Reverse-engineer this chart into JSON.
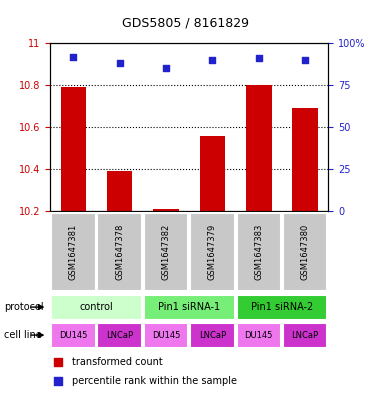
{
  "title": "GDS5805 / 8161829",
  "samples": [
    "GSM1647381",
    "GSM1647378",
    "GSM1647382",
    "GSM1647379",
    "GSM1647383",
    "GSM1647380"
  ],
  "red_values": [
    10.79,
    10.39,
    10.21,
    10.56,
    10.8,
    10.69
  ],
  "blue_values": [
    92,
    88,
    85,
    90,
    91,
    90
  ],
  "ylim_left": [
    10.2,
    11.0
  ],
  "ylim_right": [
    0,
    100
  ],
  "yticks_left": [
    10.2,
    10.4,
    10.6,
    10.8,
    11.0
  ],
  "yticks_right": [
    0,
    25,
    50,
    75,
    100
  ],
  "ytick_labels_left": [
    "10.2",
    "10.4",
    "10.6",
    "10.8",
    "11"
  ],
  "ytick_labels_right": [
    "0",
    "25",
    "50",
    "75",
    "100%"
  ],
  "protocols": [
    {
      "label": "control",
      "span": [
        0,
        2
      ],
      "color": "#ccffcc"
    },
    {
      "label": "Pin1 siRNA-1",
      "span": [
        2,
        4
      ],
      "color": "#77ee77"
    },
    {
      "label": "Pin1 siRNA-2",
      "span": [
        4,
        6
      ],
      "color": "#33cc33"
    }
  ],
  "cell_colors": [
    "#ee77ee",
    "#cc33cc",
    "#ee77ee",
    "#cc33cc",
    "#ee77ee",
    "#cc33cc"
  ],
  "cell_labels": [
    "DU145",
    "LNCaP",
    "DU145",
    "LNCaP",
    "DU145",
    "LNCaP"
  ],
  "sample_bg": "#c8c8c8",
  "bar_color": "#cc0000",
  "dot_color": "#2222cc",
  "label_color_left": "#cc0000",
  "label_color_right": "#2222cc",
  "legend_red_label": "transformed count",
  "legend_blue_label": "percentile rank within the sample",
  "protocol_label": "protocol",
  "cell_line_label": "cell line"
}
